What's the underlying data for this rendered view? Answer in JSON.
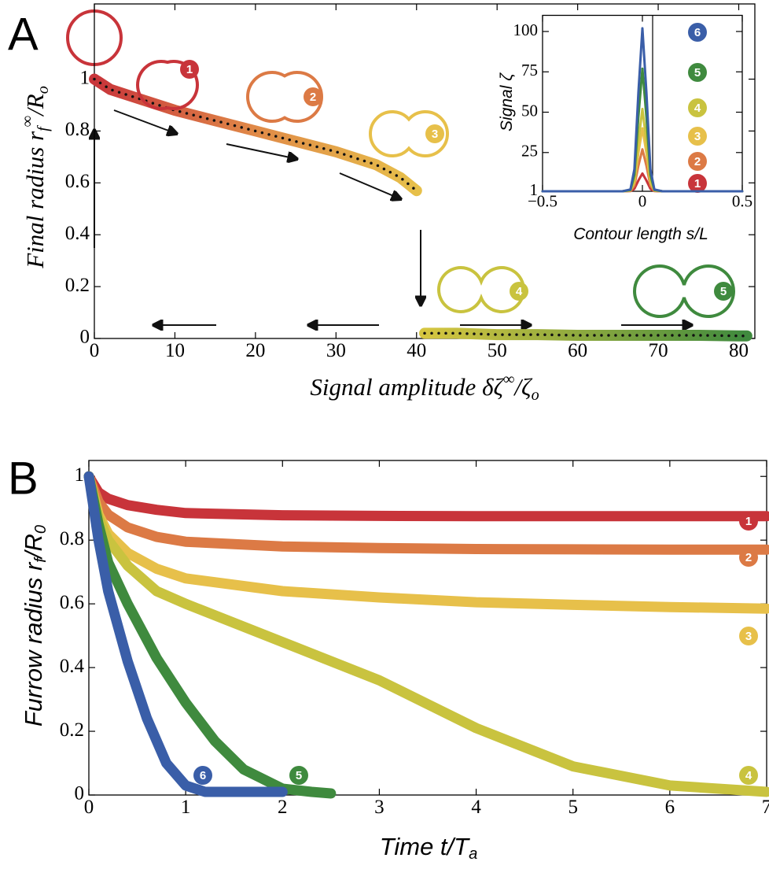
{
  "chart_data": [
    {
      "type": "line",
      "panel": "A",
      "xlabel": [
        "Signal amplitude  δζ",
        "∞",
        "/ζ",
        "o"
      ],
      "ylabel": [
        "Final radius  r",
        "f",
        "∞",
        "/R",
        "o"
      ],
      "xlim": [
        0,
        82
      ],
      "ylim": [
        0,
        1.29
      ],
      "xticks": [
        0,
        10,
        20,
        30,
        40,
        50,
        60,
        70,
        80
      ],
      "yticks": [
        0,
        0.2,
        0.4,
        0.6,
        0.8,
        1
      ],
      "grid": false,
      "series": [
        {
          "gradient": [
            "#c8343a",
            "#e08a48",
            "#e7c04a"
          ],
          "x": [
            0,
            2,
            5,
            10,
            15,
            20,
            25,
            30,
            35,
            38,
            40
          ],
          "values": [
            1,
            0.96,
            0.93,
            0.88,
            0.84,
            0.8,
            0.76,
            0.72,
            0.67,
            0.62,
            0.57
          ]
        },
        {
          "gradient": [
            "#d6c640",
            "#3f8a3e"
          ],
          "x": [
            41,
            45,
            50,
            55,
            60,
            65,
            70,
            75,
            80,
            81
          ],
          "values": [
            0.02,
            0.02,
            0.015,
            0.015,
            0.012,
            0.012,
            0.012,
            0.012,
            0.01,
            0.01
          ]
        }
      ],
      "labels": [
        "1",
        "2",
        "3",
        "4",
        "5"
      ],
      "label_colors": [
        "#c8343a",
        "#dc7a45",
        "#e7c04a",
        "#c9c33f",
        "#3f8a3e"
      ]
    },
    {
      "type": "line",
      "xlabel": [
        "Contour length  s/L"
      ],
      "ylabel": [
        "Signal ζ"
      ],
      "xlim": [
        -0.5,
        0.5
      ],
      "ylim": [
        1,
        110
      ],
      "xticks": [
        {
          "value": -0.5,
          "label": "−0.5"
        },
        0,
        0.5
      ],
      "yticks": [
        1,
        25,
        50,
        75,
        100
      ],
      "grid": false,
      "x": [
        -0.5,
        -0.1,
        -0.06,
        -0.04,
        -0.02,
        0,
        0.02,
        0.04,
        0.06,
        0.1,
        0.5
      ],
      "series": [
        {
          "name": "1",
          "color": "#c8343a",
          "values": [
            1,
            1,
            1.1,
            2.5,
            7.7,
            12,
            7.7,
            2.5,
            1.1,
            1,
            1
          ]
        },
        {
          "name": "2",
          "color": "#dc7a45",
          "values": [
            1,
            1,
            1.3,
            4.5,
            16.8,
            27,
            16.8,
            4.5,
            1.3,
            1,
            1
          ]
        },
        {
          "name": "3",
          "color": "#e7c04a",
          "values": [
            1,
            1,
            1.4,
            6.3,
            24.7,
            40,
            24.7,
            6.3,
            1.4,
            1,
            1
          ]
        },
        {
          "name": "4",
          "color": "#c9c33f",
          "values": [
            1,
            1,
            1.6,
            7.9,
            32,
            52,
            32,
            7.9,
            1.6,
            1,
            1
          ]
        },
        {
          "name": "5",
          "color": "#3f8a3e",
          "values": [
            1,
            1,
            1.8,
            11.3,
            47.1,
            77,
            47.1,
            11.3,
            1.8,
            1,
            1
          ]
        },
        {
          "name": "6",
          "color": "#3a5ea8",
          "values": [
            1,
            1,
            2.1,
            14.6,
            62.3,
            102,
            62.3,
            14.6,
            2.1,
            1,
            1
          ]
        }
      ]
    },
    {
      "type": "line",
      "panel": "B",
      "xlabel": [
        "Time  t/T",
        "a"
      ],
      "ylabel": [
        "Furrow  radius  r",
        "f",
        "/R",
        "0"
      ],
      "xlim": [
        0,
        7
      ],
      "ylim": [
        0,
        1.05
      ],
      "xticks": [
        0,
        1,
        2,
        3,
        4,
        5,
        6,
        7
      ],
      "yticks": [
        0,
        0.2,
        0.4,
        0.6,
        0.8,
        1
      ],
      "grid": false,
      "series": [
        {
          "name": "1",
          "color": "#c8343a",
          "x": [
            0,
            0.1,
            0.2,
            0.4,
            0.7,
            1,
            2,
            3,
            4,
            5,
            6,
            7
          ],
          "values": [
            1,
            0.95,
            0.93,
            0.91,
            0.895,
            0.885,
            0.878,
            0.876,
            0.875,
            0.875,
            0.875,
            0.875
          ]
        },
        {
          "name": "2",
          "color": "#dc7a45",
          "x": [
            0,
            0.1,
            0.2,
            0.4,
            0.7,
            1,
            2,
            3,
            4,
            5,
            6,
            7
          ],
          "values": [
            1,
            0.92,
            0.88,
            0.84,
            0.81,
            0.795,
            0.78,
            0.775,
            0.772,
            0.771,
            0.77,
            0.77
          ]
        },
        {
          "name": "3",
          "color": "#e7c04a",
          "x": [
            0,
            0.1,
            0.2,
            0.4,
            0.7,
            1,
            2,
            3,
            4,
            5,
            6,
            7
          ],
          "values": [
            1,
            0.88,
            0.82,
            0.76,
            0.71,
            0.68,
            0.64,
            0.62,
            0.605,
            0.597,
            0.59,
            0.585
          ]
        },
        {
          "name": "4",
          "color": "#c9c33f",
          "x": [
            0,
            0.1,
            0.2,
            0.4,
            0.7,
            1,
            2,
            3,
            4,
            5,
            6,
            7
          ],
          "values": [
            1,
            0.87,
            0.8,
            0.72,
            0.64,
            0.6,
            0.48,
            0.36,
            0.21,
            0.09,
            0.03,
            0.01
          ]
        },
        {
          "name": "5",
          "color": "#3f8a3e",
          "x": [
            0,
            0.1,
            0.2,
            0.4,
            0.7,
            1,
            1.3,
            1.6,
            2,
            2.3,
            2.5
          ],
          "values": [
            1,
            0.85,
            0.73,
            0.6,
            0.43,
            0.29,
            0.17,
            0.08,
            0.02,
            0.01,
            0.005
          ]
        },
        {
          "name": "6",
          "color": "#3a5ea8",
          "x": [
            0,
            0.1,
            0.2,
            0.4,
            0.6,
            0.8,
            1,
            1.2,
            1.5,
            2
          ],
          "values": [
            1,
            0.8,
            0.64,
            0.42,
            0.24,
            0.1,
            0.03,
            0.01,
            0.01,
            0.01
          ]
        }
      ]
    }
  ]
}
